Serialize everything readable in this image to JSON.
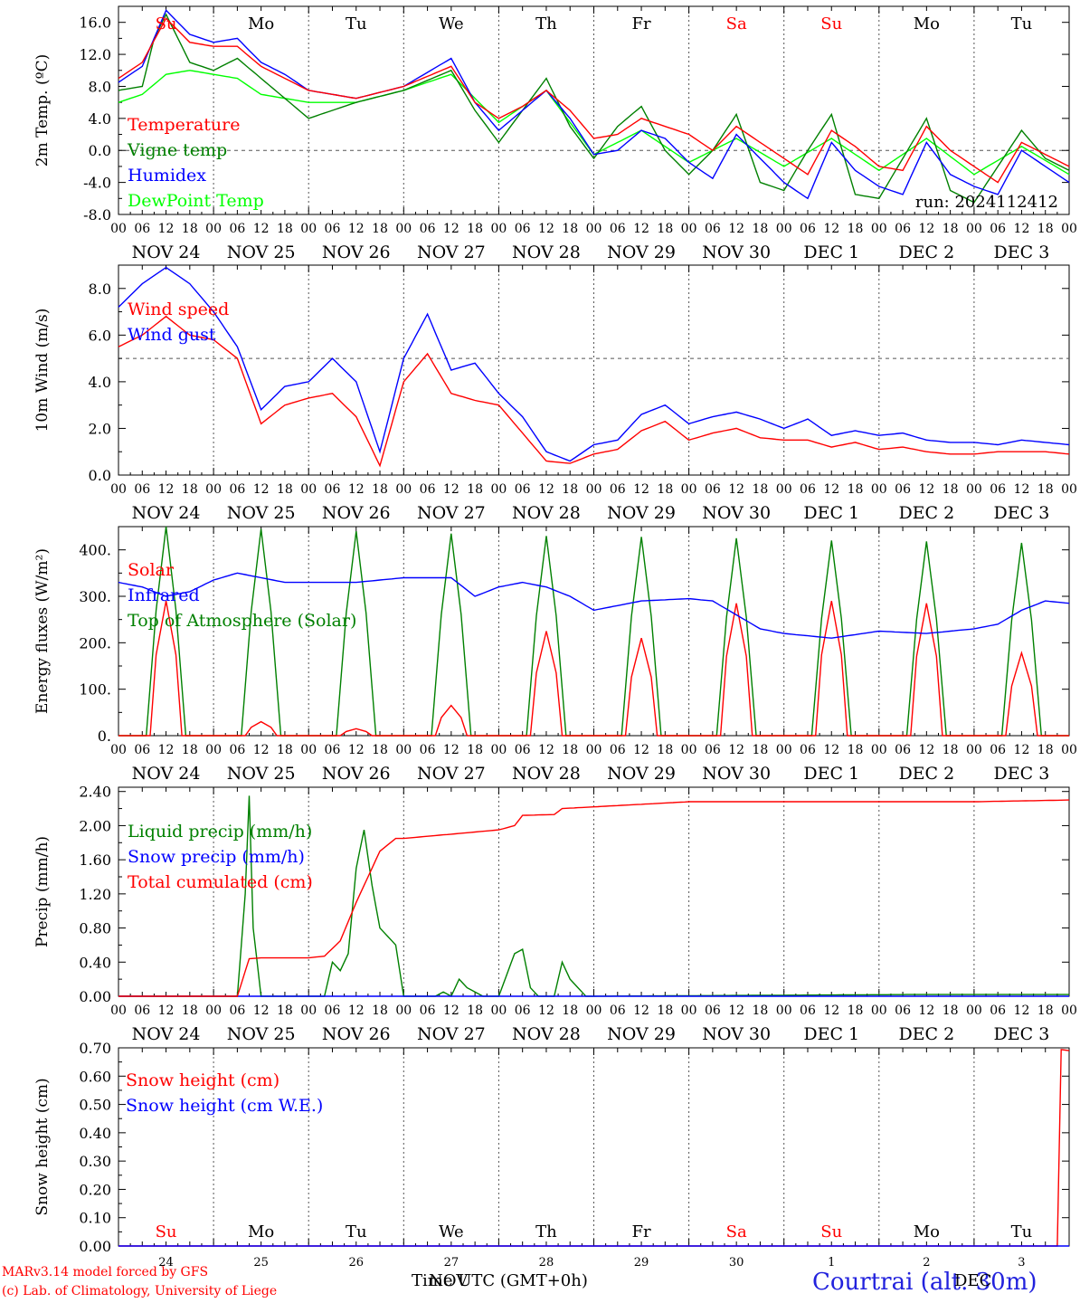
{
  "colors": {
    "red": "#ff0000",
    "green": "#008000",
    "blue": "#0000ff",
    "lightgreen": "#00ff00",
    "black": "#000000",
    "grid": "#555555"
  },
  "chart_data": {
    "type": "line",
    "x_hours": [
      0,
      24,
      48,
      72,
      96,
      120,
      144,
      168,
      192,
      216,
      240
    ],
    "day_labels": [
      "Su",
      "Mo",
      "Tu",
      "We",
      "Th",
      "Fr",
      "Sa",
      "Su",
      "Mo",
      "Tu"
    ],
    "weekend_indices": [
      0,
      6,
      7
    ],
    "date_labels": [
      "NOV 24",
      "NOV 25",
      "NOV 26",
      "NOV 27",
      "NOV 28",
      "NOV 29",
      "NOV 30",
      "DEC  1",
      "DEC  2",
      "DEC  3"
    ],
    "day_numbers": [
      "24",
      "25",
      "26",
      "27",
      "28",
      "29",
      "30",
      "1",
      "2",
      "3"
    ],
    "hour_ticks": [
      "00",
      "06",
      "12",
      "18"
    ],
    "end_tick": "00",
    "panels": [
      {
        "id": "temperature",
        "ylabel": "2m Temp. (ºC)",
        "ylim": [
          -8,
          18
        ],
        "yticks": [
          "16.0",
          "12.0",
          "8.0",
          "4.0",
          "0.0",
          "-4.0",
          "-8.0"
        ],
        "ytick_values": [
          16,
          12,
          8,
          4,
          0,
          -4,
          -8
        ],
        "ref_line": 0,
        "run_label": "run: 2024112412",
        "series": [
          {
            "name": "DewPoint Temp",
            "color": "#00ff00",
            "x": [
              0,
              6,
              12,
              18,
              24,
              30,
              36,
              42,
              48,
              60,
              72,
              84,
              96,
              108,
              120,
              132,
              144,
              156,
              168,
              180,
              192,
              204,
              216,
              228,
              240
            ],
            "values": [
              6,
              7,
              9.5,
              10,
              9.5,
              9,
              7,
              6.5,
              6,
              6,
              7.5,
              9.5,
              3.5,
              7.5,
              -0.5,
              2.5,
              -1.5,
              1.5,
              -2,
              1.5,
              -2.5,
              1.5,
              -3,
              0.5,
              -3
            ]
          },
          {
            "name": "Vigne temp",
            "color": "#008000",
            "x": [
              0,
              6,
              9,
              12,
              15,
              18,
              24,
              30,
              36,
              42,
              48,
              60,
              72,
              84,
              90,
              96,
              102,
              108,
              114,
              120,
              126,
              132,
              138,
              144,
              150,
              156,
              162,
              168,
              174,
              180,
              186,
              192,
              198,
              204,
              210,
              216,
              222,
              228,
              234,
              240
            ],
            "values": [
              7.5,
              8,
              14,
              17,
              14,
              11,
              10,
              11.5,
              9,
              6.5,
              4,
              6,
              7.5,
              10,
              5,
              1,
              5,
              9,
              3,
              -1,
              3,
              5.5,
              0,
              -3,
              0,
              4.5,
              -4,
              -5,
              0,
              4.5,
              -5.5,
              -6,
              -1,
              4,
              -5,
              -6.5,
              -2,
              2.5,
              -1,
              -2.5
            ]
          },
          {
            "name": "Humidex",
            "color": "#0000ff",
            "x": [
              0,
              6,
              12,
              18,
              24,
              30,
              36,
              42,
              48,
              60,
              72,
              84,
              90,
              96,
              102,
              108,
              114,
              120,
              126,
              132,
              138,
              144,
              150,
              156,
              162,
              168,
              174,
              180,
              186,
              192,
              198,
              204,
              210,
              216,
              222,
              228,
              234,
              240
            ],
            "values": [
              8.5,
              10.5,
              17.5,
              14.5,
              13.5,
              14,
              11,
              9.5,
              7.5,
              6.5,
              8,
              11.5,
              6,
              2.5,
              5,
              7.5,
              4,
              -0.5,
              0,
              2.5,
              1.5,
              -1.5,
              -3.5,
              2,
              -1,
              -4,
              -6,
              1,
              -2.5,
              -4.5,
              -5.5,
              1,
              -3,
              -4.5,
              -5.5,
              0,
              -2,
              -4
            ]
          },
          {
            "name": "Temperature",
            "color": "#ff0000",
            "x": [
              0,
              6,
              12,
              18,
              24,
              30,
              36,
              42,
              48,
              60,
              72,
              84,
              90,
              96,
              102,
              108,
              114,
              120,
              126,
              132,
              138,
              144,
              150,
              156,
              162,
              168,
              174,
              180,
              186,
              192,
              198,
              204,
              210,
              216,
              222,
              228,
              234,
              240
            ],
            "values": [
              9,
              11,
              16.5,
              13.5,
              13,
              13,
              10.5,
              9,
              7.5,
              6.5,
              8,
              10.5,
              6,
              4,
              5.5,
              7.5,
              5,
              1.5,
              2,
              4,
              3,
              2,
              0,
              3,
              1,
              -1,
              -3,
              2.5,
              0.5,
              -2,
              -2.5,
              3,
              0,
              -2,
              -4,
              1,
              -0.5,
              -2
            ]
          }
        ]
      },
      {
        "id": "wind",
        "ylabel": "10m Wind (m/s)",
        "ylim": [
          0,
          9
        ],
        "yticks": [
          "8.0",
          "6.0",
          "4.0",
          "2.0",
          "0.0"
        ],
        "ytick_values": [
          8,
          6,
          4,
          2,
          0
        ],
        "ref_line": 5,
        "series": [
          {
            "name": "Wind gust",
            "color": "#0000ff",
            "x": [
              0,
              6,
              12,
              18,
              24,
              30,
              36,
              42,
              48,
              54,
              60,
              66,
              72,
              78,
              84,
              90,
              96,
              102,
              108,
              114,
              120,
              126,
              132,
              138,
              144,
              150,
              156,
              162,
              168,
              174,
              180,
              186,
              192,
              198,
              204,
              210,
              216,
              222,
              228,
              234,
              240
            ],
            "values": [
              7.2,
              8.2,
              8.9,
              8.2,
              7,
              5.5,
              2.8,
              3.8,
              4,
              5,
              4,
              1,
              5,
              6.9,
              4.5,
              4.8,
              3.5,
              2.5,
              1,
              0.6,
              1.3,
              1.5,
              2.6,
              3,
              2.2,
              2.5,
              2.7,
              2.4,
              2,
              2.4,
              1.7,
              1.9,
              1.7,
              1.8,
              1.5,
              1.4,
              1.4,
              1.3,
              1.5,
              1.4,
              1.3
            ]
          },
          {
            "name": "Wind speed",
            "color": "#ff0000",
            "x": [
              0,
              6,
              12,
              18,
              24,
              30,
              36,
              42,
              48,
              54,
              60,
              66,
              72,
              78,
              84,
              90,
              96,
              102,
              108,
              114,
              120,
              126,
              132,
              138,
              144,
              150,
              156,
              162,
              168,
              174,
              180,
              186,
              192,
              198,
              204,
              210,
              216,
              222,
              228,
              234,
              240
            ],
            "values": [
              5.5,
              6,
              6.8,
              6,
              5.8,
              5,
              2.2,
              3,
              3.3,
              3.5,
              2.5,
              0.4,
              4,
              5.2,
              3.5,
              3.2,
              3,
              1.8,
              0.6,
              0.5,
              0.9,
              1.1,
              1.9,
              2.3,
              1.5,
              1.8,
              2,
              1.6,
              1.5,
              1.5,
              1.2,
              1.4,
              1.1,
              1.2,
              1,
              0.9,
              0.9,
              1,
              1,
              1,
              0.9
            ]
          }
        ]
      },
      {
        "id": "energy",
        "ylabel": "Energy fluxes (W/m²)",
        "ylim": [
          0,
          450
        ],
        "yticks": [
          "400.",
          "300.",
          "200.",
          "100.",
          "0."
        ],
        "ytick_values": [
          400,
          300,
          200,
          100,
          0
        ],
        "series": [
          {
            "name": "Top of Atmosphere (Solar)",
            "color": "#008000",
            "type": "daily_pulse",
            "peaks": [
              450,
              445,
              440,
              435,
              430,
              428,
              425,
              420,
              418,
              415
            ],
            "start_h": 7,
            "end_h": 17
          },
          {
            "name": "Solar",
            "color": "#ff0000",
            "type": "daily_pulse",
            "peaks": [
              290,
              30,
              15,
              65,
              225,
              210,
              285,
              290,
              285,
              178
            ],
            "start_h": 8,
            "end_h": 16
          },
          {
            "name": "Infrared",
            "color": "#0000ff",
            "x": [
              0,
              6,
              12,
              18,
              24,
              30,
              36,
              42,
              48,
              60,
              72,
              84,
              90,
              96,
              102,
              108,
              114,
              120,
              132,
              144,
              150,
              156,
              162,
              168,
              180,
              192,
              204,
              216,
              222,
              228,
              234,
              240
            ],
            "values": [
              330,
              320,
              300,
              310,
              335,
              350,
              340,
              330,
              330,
              330,
              340,
              340,
              300,
              320,
              330,
              320,
              300,
              270,
              290,
              295,
              290,
              260,
              230,
              220,
              210,
              225,
              220,
              230,
              240,
              270,
              290,
              285
            ]
          }
        ]
      },
      {
        "id": "precip",
        "ylabel": "Precip (mm/h)",
        "ylim": [
          0,
          2.45
        ],
        "yticks": [
          "2.40",
          "2.00",
          "1.60",
          "1.20",
          "0.80",
          "0.40",
          "0.00"
        ],
        "ytick_values": [
          2.4,
          2.0,
          1.6,
          1.2,
          0.8,
          0.4,
          0.0
        ],
        "series": [
          {
            "name": "Liquid precip (mm/h)",
            "color": "#008000",
            "x": [
              0,
              30,
              32,
              33,
              34,
              36,
              52,
              54,
              56,
              58,
              60,
              62,
              64,
              66,
              68,
              70,
              72,
              80,
              82,
              84,
              86,
              88,
              92,
              96,
              100,
              102,
              104,
              106,
              110,
              112,
              114,
              118,
              200,
              240
            ],
            "values": [
              0,
              0,
              1.2,
              2.35,
              0.8,
              0,
              0,
              0.4,
              0.3,
              0.5,
              1.5,
              1.95,
              1.3,
              0.8,
              0.7,
              0.6,
              0,
              0,
              0.05,
              0,
              0.2,
              0.1,
              0,
              0,
              0.5,
              0.55,
              0.1,
              0,
              0,
              0.4,
              0.2,
              0,
              0.02,
              0.02
            ]
          },
          {
            "name": "Snow precip (mm/h)",
            "color": "#0000ff",
            "x": [
              0,
              240
            ],
            "values": [
              0,
              0
            ]
          },
          {
            "name": "Total cumulated (cm)",
            "color": "#ff0000",
            "x": [
              0,
              30,
              33,
              36,
              48,
              52,
              56,
              60,
              66,
              70,
              72,
              84,
              96,
              100,
              102,
              110,
              112,
              120,
              144,
              168,
              192,
              216,
              240
            ],
            "values": [
              0,
              0,
              0.44,
              0.45,
              0.45,
              0.47,
              0.65,
              1.1,
              1.7,
              1.85,
              1.85,
              1.9,
              1.95,
              2.0,
              2.12,
              2.13,
              2.2,
              2.22,
              2.28,
              2.28,
              2.28,
              2.28,
              2.3
            ]
          }
        ]
      },
      {
        "id": "snow",
        "ylabel": "Snow height (cm)",
        "ylim": [
          0,
          0.7
        ],
        "yticks": [
          "0.70",
          "0.60",
          "0.50",
          "0.40",
          "0.30",
          "0.20",
          "0.10",
          "0.00"
        ],
        "ytick_values": [
          0.7,
          0.6,
          0.5,
          0.4,
          0.3,
          0.2,
          0.1,
          0.0
        ],
        "series": [
          {
            "name": "Snow height (cm)",
            "color": "#ff0000",
            "x": [
              0,
              237,
              237.5,
              240
            ],
            "values": [
              0,
              0,
              0.695,
              0.69
            ]
          },
          {
            "name": "Snow height (cm W.E.)",
            "color": "#0000ff",
            "x": [
              0,
              240
            ],
            "values": [
              0,
              0
            ]
          }
        ]
      }
    ],
    "xlabel": "Time UTC (GMT+0h)",
    "xlabel_overlap": "NOV"
  },
  "footer": {
    "model": "MARv3.14 model forced by GFS",
    "lab": "(c) Lab. of Climatology, University of Liege",
    "station": "Courtrai (alt. 30m)",
    "station_overlap": "DEC"
  }
}
